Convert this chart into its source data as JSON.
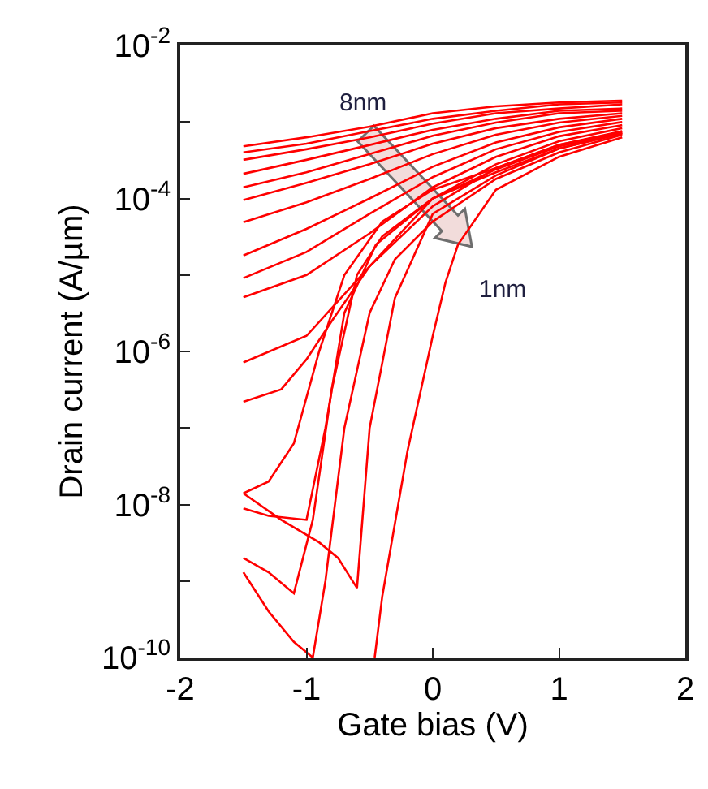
{
  "chart_data": {
    "type": "line",
    "xlabel": "Gate bias (V)",
    "ylabel": "Drain current (A/µm)",
    "log": "y",
    "grid": false,
    "marker": "none",
    "line_style": "solid",
    "xlim": [
      -2,
      2
    ],
    "xticks": [
      -2,
      -1,
      0,
      1,
      2
    ],
    "ylim": [
      1e-10,
      0.01
    ],
    "yticks": [
      {
        "value": 0.01,
        "label": "10$^{-2}$"
      },
      {
        "value": 0.001,
        "label": null
      },
      {
        "value": 0.0001,
        "label": "10$^{-4}$"
      },
      {
        "value": 1e-05,
        "label": null
      },
      {
        "value": 1e-06,
        "label": "10$^{-6}$"
      },
      {
        "value": 1e-07,
        "label": null
      },
      {
        "value": 1e-08,
        "label": "10$^{-8}$"
      },
      {
        "value": 1e-09,
        "label": null
      },
      {
        "value": 1e-10,
        "label": "10$^{-10}$"
      }
    ],
    "annotations": [
      "8nm",
      "1nm"
    ],
    "x": [
      -1.5,
      -1,
      -0.5,
      0,
      0.5,
      1,
      1.5
    ],
    "series": [
      {
        "color": "#ff0000",
        "values": [
          0.00048,
          0.00063,
          0.00087,
          0.0013,
          0.0016,
          0.0018,
          0.0019
        ]
      },
      {
        "color": "#ff0000",
        "values": [
          0.0004,
          0.00052,
          0.00076,
          0.0011,
          0.0014,
          0.0017,
          0.0018
        ]
      },
      {
        "color": "#ff0000",
        "values": [
          0.00032,
          0.00044,
          0.00063,
          0.00095,
          0.0013,
          0.0015,
          0.0017
        ]
      },
      {
        "color": "#ff0000",
        "values": [
          0.00021,
          0.00032,
          0.0005,
          0.00079,
          0.0011,
          0.0014,
          0.0015
        ]
      },
      {
        "color": "#ff0000",
        "values": [
          0.00014,
          0.00022,
          0.00038,
          0.00066,
          0.00098,
          0.0013,
          0.0014
        ]
      },
      {
        "color": "#ff0000",
        "values": [
          9.5e-05,
          0.00016,
          0.00028,
          0.00052,
          0.00083,
          0.0011,
          0.0013
        ]
      },
      {
        "color": "#ff0000",
        "values": [
          4.9e-05,
          8.9e-05,
          0.00018,
          0.00038,
          0.00068,
          0.00098,
          0.0012
        ]
      },
      {
        "color": "#ff0000",
        "values": [
          1.8e-05,
          4e-05,
          0.0001,
          0.00026,
          0.00054,
          0.00085,
          0.0011
        ]
      },
      {
        "color": "#ff0000",
        "values": [
          9.1e-06,
          2e-05,
          6.3e-05,
          0.00019,
          0.00044,
          0.00074,
          0.001
        ]
      },
      {
        "color": "#ff0000",
        "values": [
          5.1e-06,
          1e-05,
          3.5e-05,
          0.00014,
          0.00035,
          0.00065,
          0.00091
        ]
      },
      {
        "color": "#ff0000",
        "values": [
          7.2e-07,
          1.6e-06,
          1.3e-05,
          0.0001,
          0.00028,
          0.00056,
          0.00083
        ]
      },
      {
        "color": "#ff0000",
        "x": [
          -1.5,
          -1.2,
          -1.0,
          -0.8,
          -0.5,
          0,
          0.5,
          1,
          1.5
        ],
        "values": [
          2.2e-07,
          3.2e-07,
          7.9e-07,
          2.5e-06,
          1.3e-05,
          7.9e-05,
          0.00025,
          0.0005,
          0.00076
        ]
      },
      {
        "color": "#ff0000",
        "x": [
          -1.5,
          -1.3,
          -1.1,
          -0.9,
          -0.7,
          -0.4,
          0,
          0.5,
          1,
          1.5
        ],
        "values": [
          1.4e-08,
          2e-08,
          6.3e-08,
          1e-06,
          1e-05,
          5e-05,
          0.00013,
          0.00025,
          0.0005,
          0.00074
        ]
      },
      {
        "color": "#ff0000",
        "x": [
          -1.5,
          -1.3,
          -1.0,
          -0.85,
          -0.7,
          -0.45,
          0,
          0.5,
          1,
          1.5
        ],
        "values": [
          8.9e-09,
          7.1e-09,
          6.3e-09,
          1e-07,
          3.2e-06,
          2.5e-05,
          0.0001,
          0.00024,
          0.00048,
          0.00072
        ]
      },
      {
        "color": "#ff0000",
        "x": [
          -1.5,
          -1.2,
          -0.9,
          -0.75,
          -0.6,
          -0.5,
          -0.3,
          0,
          0.5,
          1,
          1.5
        ],
        "values": [
          1.4e-08,
          6.3e-09,
          3.2e-09,
          2e-09,
          8.1e-10,
          1e-07,
          5e-06,
          6.3e-05,
          0.0002,
          0.00045,
          0.00071
        ]
      },
      {
        "color": "#ff0000",
        "x": [
          -1.5,
          -1.3,
          -1.1,
          -0.95,
          -0.8,
          -0.6,
          -0.4,
          0,
          0.5,
          1,
          1.5
        ],
        "values": [
          2e-09,
          1.3e-09,
          6.9e-10,
          6.3e-09,
          3.2e-07,
          1e-05,
          3.2e-05,
          0.0001,
          0.00022,
          0.00045,
          0.00071
        ]
      },
      {
        "color": "#ff0000",
        "x": [
          -1.5,
          -1.3,
          -1.1,
          -0.95,
          -0.85,
          -0.7,
          -0.5,
          -0.3,
          0,
          0.5,
          1,
          1.5
        ],
        "values": [
          1.3e-09,
          4e-10,
          1.6e-10,
          1e-10,
          1e-09,
          1e-07,
          3.2e-06,
          1.6e-05,
          5e-05,
          0.00018,
          0.0004,
          0.00068
        ]
      },
      {
        "color": "#ff0000",
        "x": [
          -0.46,
          -0.4,
          -0.2,
          0,
          0.1,
          0.2,
          0.5,
          1,
          1.5
        ],
        "values": [
          1e-10,
          6.3e-10,
          5e-08,
          1.6e-06,
          7.9e-06,
          2.5e-05,
          0.00013,
          0.00035,
          0.00063
        ]
      }
    ]
  }
}
